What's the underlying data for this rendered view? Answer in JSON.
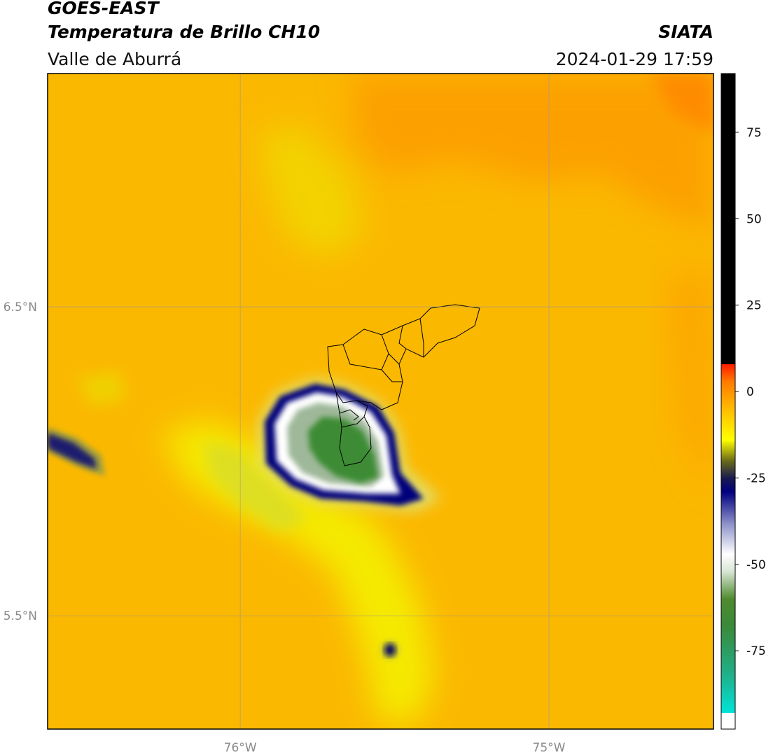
{
  "header": {
    "satellite": "GOES-EAST",
    "product": "Temperatura de Brillo CH10",
    "region": "Valle de Aburrá",
    "source": "SIATA",
    "datetime": "2024-01-29 17:59"
  },
  "map": {
    "lonlim": [
      -76.624,
      -74.467
    ],
    "latlim": [
      5.133,
      7.255
    ],
    "lonticks": [
      {
        "value": -76,
        "label": "76°W"
      },
      {
        "value": -75,
        "label": "75°W"
      }
    ],
    "latticks": [
      {
        "value": 6.5,
        "label": "6.5°N"
      },
      {
        "value": 5.5,
        "label": "5.5°N"
      }
    ]
  },
  "colorbar": {
    "lim": [
      -93,
      92
    ],
    "ticks": [
      75,
      50,
      25,
      0,
      -25,
      -50,
      -75
    ],
    "under_color": "#ffffff",
    "stops": [
      {
        "value": -93,
        "color": "#00e5d8"
      },
      {
        "value": -82,
        "color": "#1fb08a"
      },
      {
        "value": -68,
        "color": "#3a8a3a"
      },
      {
        "value": -60,
        "color": "#4f8a2e"
      },
      {
        "value": -52,
        "color": "#d9e6d6"
      },
      {
        "value": -47,
        "color": "#ffffff"
      },
      {
        "value": -38,
        "color": "#8a8ec8"
      },
      {
        "value": -29,
        "color": "#000080"
      },
      {
        "value": -25,
        "color": "#1a1a50"
      },
      {
        "value": -20,
        "color": "#6b6b1a"
      },
      {
        "value": -14,
        "color": "#ffff00"
      },
      {
        "value": -5,
        "color": "#ffbb00"
      },
      {
        "value": 3,
        "color": "#ff7a00"
      },
      {
        "value": 8,
        "color": "#ff1a00"
      },
      {
        "value": 8.01,
        "color": "#000000"
      },
      {
        "value": 92,
        "color": "#000000"
      }
    ]
  }
}
